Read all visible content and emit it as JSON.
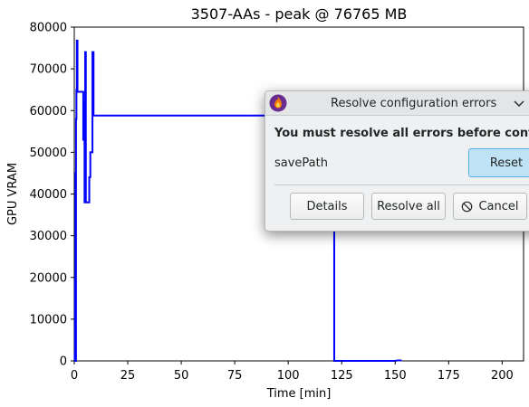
{
  "chart_data": {
    "type": "line",
    "title": "3507-AAs - peak @ 76765 MB",
    "xlabel": "Time [min]",
    "ylabel": "GPU VRAM",
    "xlim": [
      0,
      210
    ],
    "ylim": [
      0,
      80000
    ],
    "x_ticks": [
      0,
      25,
      50,
      75,
      100,
      125,
      150,
      175,
      200
    ],
    "y_ticks": [
      0,
      10000,
      20000,
      30000,
      40000,
      50000,
      60000,
      70000,
      80000
    ],
    "grid": false,
    "series": [
      {
        "color": "#0000ff",
        "points": [
          [
            0.0,
            0
          ],
          [
            0.2,
            0
          ],
          [
            0.2,
            1500
          ],
          [
            0.4,
            1500
          ],
          [
            0.4,
            20000
          ],
          [
            0.5,
            20000
          ],
          [
            0.5,
            45000
          ],
          [
            0.6,
            45000
          ],
          [
            0.6,
            0
          ],
          [
            0.8,
            0
          ],
          [
            0.8,
            58000
          ],
          [
            1.0,
            58000
          ],
          [
            1.0,
            65000
          ],
          [
            1.2,
            65000
          ],
          [
            1.2,
            76765
          ],
          [
            1.5,
            76765
          ],
          [
            1.5,
            64500
          ],
          [
            4.2,
            64500
          ],
          [
            4.2,
            53000
          ],
          [
            4.5,
            53000
          ],
          [
            4.5,
            62000
          ],
          [
            4.8,
            62000
          ],
          [
            4.8,
            38000
          ],
          [
            5.1,
            38000
          ],
          [
            5.1,
            74000
          ],
          [
            5.4,
            74000
          ],
          [
            5.4,
            38000
          ],
          [
            7.0,
            38000
          ],
          [
            7.0,
            44000
          ],
          [
            7.5,
            44000
          ],
          [
            7.5,
            50000
          ],
          [
            8.5,
            50000
          ],
          [
            8.5,
            74000
          ],
          [
            9.0,
            74000
          ],
          [
            9.0,
            58800
          ],
          [
            121.5,
            58800
          ],
          [
            121.5,
            0
          ],
          [
            150.0,
            0
          ],
          [
            151.0,
            100
          ],
          [
            153.0,
            100
          ]
        ]
      }
    ]
  },
  "dialog": {
    "window_title": "Resolve configuration errors",
    "message": "You must resolve all errors before continuing",
    "field_label": "savePath",
    "reset_label": "Reset",
    "details_label": "Details",
    "resolve_all_label": "Resolve all",
    "cancel_label": "Cancel",
    "icons": {
      "app": "fire-app-icon",
      "collapse": "chevron-down-icon",
      "cancel": "cancel-circle-icon"
    }
  }
}
